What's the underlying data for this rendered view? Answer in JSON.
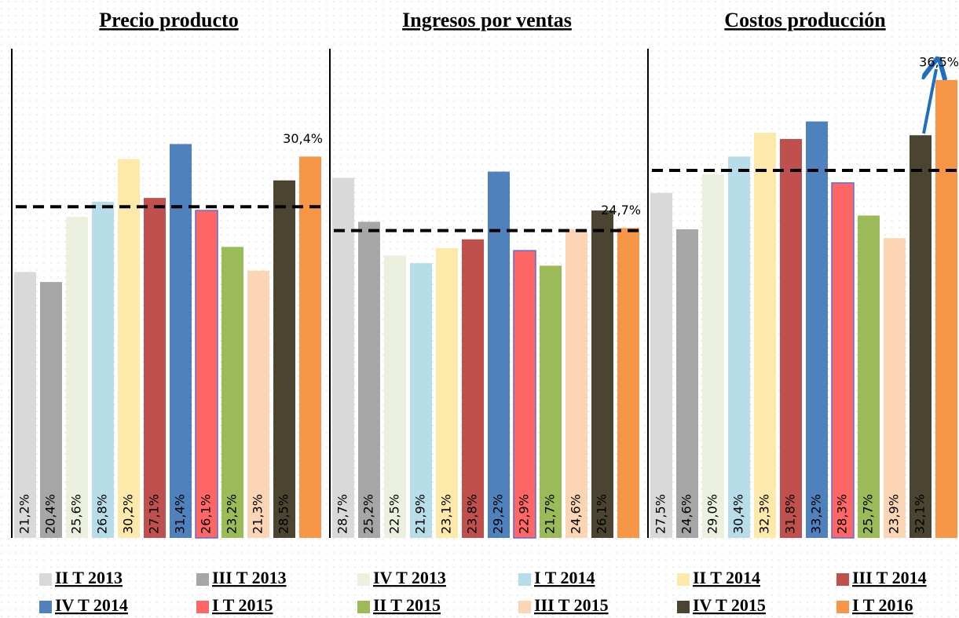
{
  "legend": {
    "labels": [
      "II T 2013",
      "III T 2013",
      "IV T 2013",
      "I T 2014",
      "II T 2014",
      "III T 2014",
      "IV T 2014",
      "I T 2015",
      "II T 2015",
      "III T 2015",
      "IV T 2015",
      "I T 2016"
    ],
    "colors": [
      "#d9d9d9",
      "#a6a6a6",
      "#ebf1de",
      "#b7dee8",
      "#fde9a9",
      "#c0504d",
      "#4f81bd",
      "#ff6666",
      "#9bbb59",
      "#fcd5b5",
      "#4a4430",
      "#f79646"
    ]
  },
  "chart_data": [
    {
      "type": "bar",
      "title": "Precio producto",
      "ylim": [
        0,
        39
      ],
      "reference_line": 26.4,
      "values": [
        21.2,
        20.4,
        25.6,
        26.8,
        30.2,
        27.1,
        31.4,
        26.1,
        23.2,
        21.3,
        28.5,
        30.4
      ],
      "value_labels": [
        "21,2%",
        "20,4%",
        "25,6%",
        "26,8%",
        "30,2%",
        "27,1%",
        "31,4%",
        "26,1%",
        "23,2%",
        "21,3%",
        "28,5%",
        "30,4%"
      ]
    },
    {
      "type": "bar",
      "title": "Ingresos por ventas",
      "ylim": [
        0,
        39
      ],
      "reference_line": 24.5,
      "values": [
        28.7,
        25.2,
        22.5,
        21.9,
        23.1,
        23.8,
        29.2,
        22.9,
        21.7,
        24.6,
        26.1,
        24.7
      ],
      "value_labels": [
        "28,7%",
        "25,2%",
        "22,5%",
        "21,9%",
        "23,1%",
        "23,8%",
        "29,2%",
        "22,9%",
        "21,7%",
        "24,6%",
        "26,1%",
        "24,7%"
      ]
    },
    {
      "type": "bar",
      "title": "Costos producción",
      "ylim": [
        0,
        39
      ],
      "reference_line": 29.3,
      "values": [
        27.5,
        24.6,
        29.0,
        30.4,
        32.3,
        31.8,
        33.2,
        28.3,
        25.7,
        23.9,
        32.1,
        36.5
      ],
      "value_labels": [
        "27,5%",
        "24,6%",
        "29,0%",
        "30,4%",
        "32,3%",
        "31,8%",
        "33,2%",
        "28,3%",
        "25,7%",
        "23,9%",
        "32,1%",
        "36,5%"
      ]
    }
  ]
}
